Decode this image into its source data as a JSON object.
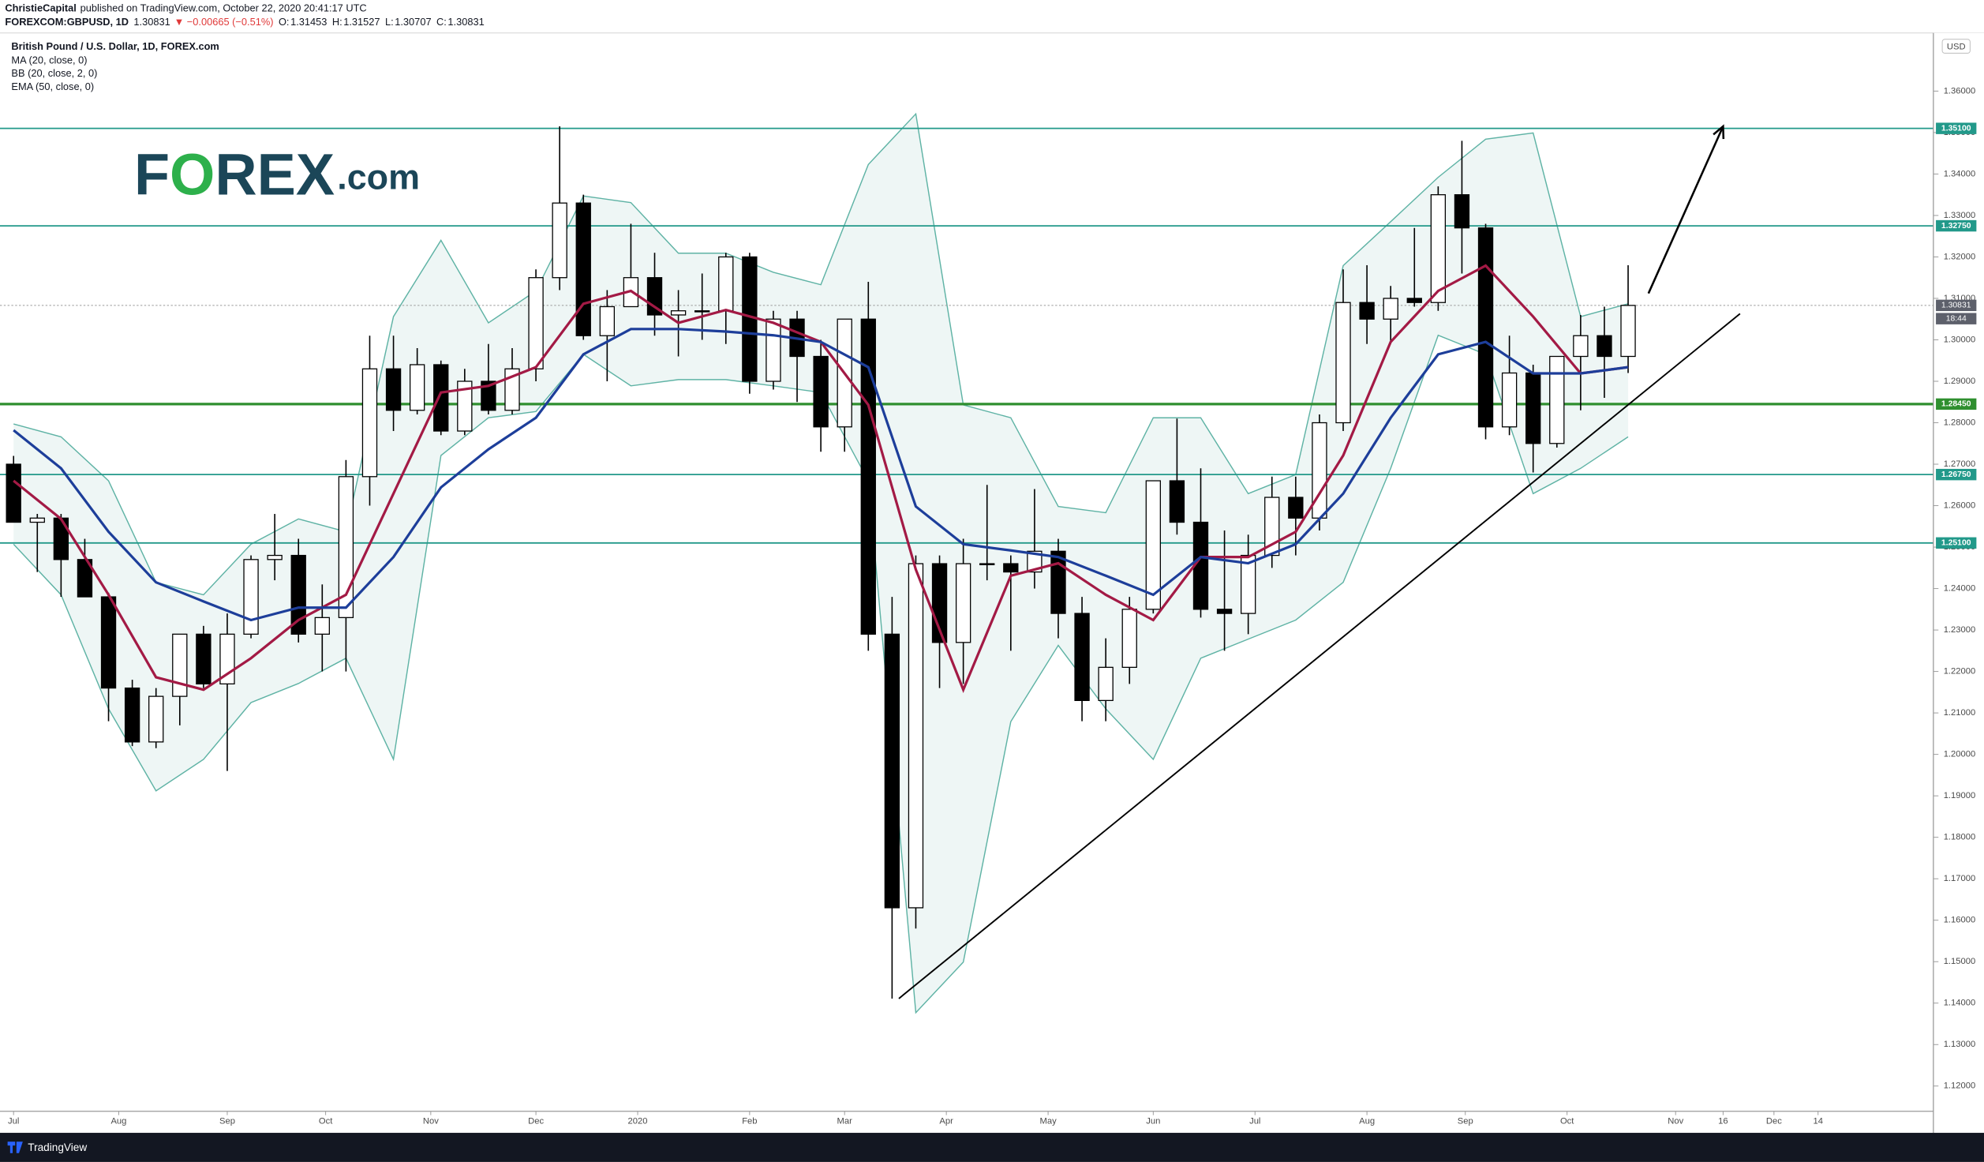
{
  "chart_data": {
    "type": "candlestick",
    "header": {
      "author": "ChristieCapital",
      "published": "published on TradingView.com, October 22, 2020 20:41:17 UTC",
      "symbol": "FOREXCOM:GBPUSD, 1D",
      "last": 1.30831,
      "change": "▼ −0.00665 (−0.51%)",
      "ohlc": [
        {
          "label": "O:",
          "value": 1.31453
        },
        {
          "label": "H:",
          "value": 1.31527
        },
        {
          "label": "L:",
          "value": 1.30707
        },
        {
          "label": "C:",
          "value": 1.30831
        }
      ]
    },
    "title": "British Pound / U.S. Dollar, 1D, FOREX.com",
    "logo": [
      "F",
      "O",
      "REX",
      ".com"
    ],
    "footer": "TradingView",
    "currency": "USD",
    "up_color": "#ffffff",
    "down_color": "#000000",
    "x": [
      "2019-07-01",
      "2019-07-08",
      "2019-07-15",
      "2019-07-22",
      "2019-07-29",
      "2019-08-05",
      "2019-08-12",
      "2019-08-19",
      "2019-08-26",
      "2019-09-02",
      "2019-09-09",
      "2019-09-16",
      "2019-09-23",
      "2019-09-30",
      "2019-10-07",
      "2019-10-14",
      "2019-10-21",
      "2019-10-28",
      "2019-11-04",
      "2019-11-11",
      "2019-11-18",
      "2019-11-25",
      "2019-12-02",
      "2019-12-09",
      "2019-12-16",
      "2019-12-23",
      "2019-12-30",
      "2020-01-06",
      "2020-01-13",
      "2020-01-20",
      "2020-01-27",
      "2020-02-03",
      "2020-02-10",
      "2020-02-17",
      "2020-02-24",
      "2020-03-02",
      "2020-03-09",
      "2020-03-16",
      "2020-03-23",
      "2020-03-30",
      "2020-04-06",
      "2020-04-13",
      "2020-04-20",
      "2020-04-27",
      "2020-05-04",
      "2020-05-11",
      "2020-05-18",
      "2020-05-25",
      "2020-06-01",
      "2020-06-08",
      "2020-06-15",
      "2020-06-22",
      "2020-06-29",
      "2020-07-06",
      "2020-07-13",
      "2020-07-20",
      "2020-07-27",
      "2020-08-03",
      "2020-08-10",
      "2020-08-17",
      "2020-08-24",
      "2020-08-31",
      "2020-09-07",
      "2020-09-14",
      "2020-09-21",
      "2020-09-28",
      "2020-10-05",
      "2020-10-12",
      "2020-10-19"
    ],
    "open": [
      1.27,
      1.256,
      1.257,
      1.247,
      1.238,
      1.216,
      1.203,
      1.214,
      1.229,
      1.217,
      1.229,
      1.247,
      1.248,
      1.229,
      1.233,
      1.267,
      1.293,
      1.283,
      1.294,
      1.278,
      1.29,
      1.283,
      1.293,
      1.315,
      1.333,
      1.301,
      1.308,
      1.315,
      1.306,
      1.307,
      1.307,
      1.32,
      1.29,
      1.305,
      1.296,
      1.279,
      1.305,
      1.229,
      1.163,
      1.246,
      1.227,
      1.246,
      1.246,
      1.244,
      1.249,
      1.234,
      1.213,
      1.221,
      1.235,
      1.266,
      1.256,
      1.235,
      1.234,
      1.248,
      1.262,
      1.257,
      1.28,
      1.309,
      1.305,
      1.31,
      1.309,
      1.335,
      1.327,
      1.279,
      1.292,
      1.275,
      1.296,
      1.301,
      1.296
    ],
    "high": [
      1.272,
      1.258,
      1.258,
      1.252,
      1.239,
      1.218,
      1.216,
      1.229,
      1.231,
      1.234,
      1.248,
      1.258,
      1.252,
      1.241,
      1.271,
      1.301,
      1.301,
      1.298,
      1.295,
      1.293,
      1.299,
      1.298,
      1.317,
      1.3515,
      1.335,
      1.312,
      1.328,
      1.321,
      1.312,
      1.316,
      1.321,
      1.321,
      1.307,
      1.307,
      1.3,
      1.305,
      1.314,
      1.238,
      1.248,
      1.248,
      1.252,
      1.265,
      1.248,
      1.264,
      1.252,
      1.238,
      1.228,
      1.238,
      1.266,
      1.281,
      1.269,
      1.254,
      1.253,
      1.267,
      1.267,
      1.282,
      1.317,
      1.318,
      1.313,
      1.327,
      1.337,
      1.348,
      1.328,
      1.301,
      1.294,
      1.295,
      1.306,
      1.308,
      1.318
    ],
    "low": [
      1.256,
      1.244,
      1.238,
      1.238,
      1.208,
      1.202,
      1.2015,
      1.207,
      1.216,
      1.196,
      1.228,
      1.242,
      1.227,
      1.22,
      1.22,
      1.26,
      1.278,
      1.282,
      1.277,
      1.277,
      1.282,
      1.282,
      1.29,
      1.312,
      1.3,
      1.29,
      1.308,
      1.301,
      1.296,
      1.3,
      1.299,
      1.287,
      1.288,
      1.285,
      1.273,
      1.273,
      1.225,
      1.1411,
      1.158,
      1.216,
      1.217,
      1.242,
      1.225,
      1.24,
      1.228,
      1.208,
      1.208,
      1.217,
      1.234,
      1.253,
      1.233,
      1.225,
      1.229,
      1.245,
      1.248,
      1.254,
      1.278,
      1.299,
      1.299,
      1.308,
      1.307,
      1.316,
      1.276,
      1.277,
      1.268,
      1.274,
      1.283,
      1.286,
      1.292
    ],
    "close": [
      1.256,
      1.257,
      1.247,
      1.238,
      1.216,
      1.203,
      1.214,
      1.229,
      1.217,
      1.229,
      1.247,
      1.248,
      1.229,
      1.233,
      1.267,
      1.293,
      1.283,
      1.294,
      1.278,
      1.29,
      1.283,
      1.293,
      1.315,
      1.333,
      1.301,
      1.308,
      1.315,
      1.306,
      1.307,
      1.307,
      1.32,
      1.29,
      1.305,
      1.296,
      1.279,
      1.305,
      1.229,
      1.163,
      1.246,
      1.227,
      1.246,
      1.246,
      1.244,
      1.249,
      1.234,
      1.213,
      1.221,
      1.235,
      1.266,
      1.256,
      1.235,
      1.234,
      1.248,
      1.262,
      1.257,
      1.28,
      1.309,
      1.305,
      1.31,
      1.309,
      1.335,
      1.327,
      1.279,
      1.292,
      1.275,
      1.296,
      1.301,
      1.296,
      1.3083
    ],
    "indicator_x": [
      "2019-07-01",
      "2019-07-15",
      "2019-07-29",
      "2019-08-12",
      "2019-08-26",
      "2019-09-09",
      "2019-09-23",
      "2019-10-07",
      "2019-10-21",
      "2019-11-04",
      "2019-11-18",
      "2019-12-02",
      "2019-12-16",
      "2019-12-30",
      "2020-01-13",
      "2020-01-27",
      "2020-02-10",
      "2020-02-24",
      "2020-03-09",
      "2020-03-23",
      "2020-04-06",
      "2020-04-20",
      "2020-05-04",
      "2020-05-18",
      "2020-06-01",
      "2020-06-15",
      "2020-06-29",
      "2020-07-13",
      "2020-07-27",
      "2020-08-10",
      "2020-08-24",
      "2020-09-07",
      "2020-09-21",
      "2020-10-05",
      "2020-10-19"
    ],
    "indicators": [
      {
        "name": "MA (20, close, 0)",
        "color": "#a31a45",
        "values": [
          1.266,
          1.2568,
          1.2385,
          1.2186,
          1.2156,
          1.2232,
          1.2324,
          1.2385,
          1.2629,
          1.2873,
          1.2889,
          1.2934,
          1.3087,
          1.3118,
          1.3041,
          1.3072,
          1.3041,
          1.2995,
          1.2843,
          1.2446,
          1.2156,
          1.2431,
          1.2461,
          1.2385,
          1.2324,
          1.2476,
          1.2476,
          1.2537,
          1.2721,
          1.2995,
          1.3118,
          1.3179,
          1.3056,
          1.2919,
          1.2934
        ]
      },
      {
        "name": "BB (20, close, 2, 0)",
        "color": "#5fb3a5",
        "fill": "#eef6f5",
        "upper": [
          1.2797,
          1.2766,
          1.266,
          1.2415,
          1.2385,
          1.2507,
          1.2568,
          1.2537,
          1.3056,
          1.324,
          1.3041,
          1.3118,
          1.3347,
          1.3331,
          1.3209,
          1.3209,
          1.3163,
          1.3133,
          1.3423,
          1.3545,
          1.2843,
          1.2812,
          1.2598,
          1.2583,
          1.2812,
          1.2812,
          1.2629,
          1.2675,
          1.3179,
          1.3285,
          1.3392,
          1.3484,
          1.3499,
          1.3056,
          1.3087
        ],
        "lower": [
          1.2507,
          1.2385,
          1.211,
          1.1912,
          1.1988,
          1.2125,
          1.2171,
          1.2232,
          1.1988,
          1.2721,
          1.2812,
          1.2827,
          1.2965,
          1.2889,
          1.2904,
          1.2904,
          1.2889,
          1.2873,
          1.266,
          1.1377,
          1.1499,
          1.2079,
          1.2263,
          1.211,
          1.1988,
          1.2232,
          1.2278,
          1.2324,
          1.2415,
          1.269,
          1.3011,
          1.2965,
          1.2629,
          1.269,
          1.2766
        ]
      },
      {
        "name": "EMA (50, close, 0)",
        "color": "#1d3e9a",
        "values": [
          1.2782,
          1.269,
          1.2537,
          1.2415,
          1.2369,
          1.2324,
          1.2354,
          1.2354,
          1.2476,
          1.2644,
          1.2736,
          1.2812,
          1.2965,
          1.3026,
          1.3026,
          1.302,
          1.3011,
          1.2995,
          1.2934,
          1.2598,
          1.2507,
          1.2492,
          1.2476,
          1.2431,
          1.2385,
          1.2476,
          1.2461,
          1.2507,
          1.2629,
          1.2812,
          1.2965,
          1.2995,
          1.2919,
          1.2919,
          1.2934
        ]
      }
    ],
    "levels": [
      {
        "value": 1.351,
        "label": "1.35100",
        "color": "#22998a"
      },
      {
        "value": 1.3275,
        "label": "1.32750",
        "color": "#22998a"
      },
      {
        "value": 1.2845,
        "label": "1.28450",
        "color": "#2f8f2f"
      },
      {
        "value": 1.2675,
        "label": "1.26750",
        "color": "#22998a"
      },
      {
        "value": 1.251,
        "label": "1.25100",
        "color": "#22998a"
      }
    ],
    "current": {
      "value": 1.30831,
      "label": "1.30831",
      "countdown": "18:44"
    },
    "trendline": {
      "x": [
        "2020-03-18",
        "2020-11-21"
      ],
      "y": [
        1.1411,
        1.3063
      ]
    },
    "arrow": {
      "x": [
        "2020-10-25",
        "2020-11-16"
      ],
      "y": [
        1.3112,
        1.3515
      ]
    },
    "xlim": [
      "2019-06-27",
      "2021-01-17"
    ],
    "ylim": [
      1.1139,
      1.3728
    ],
    "xticks": [
      {
        "value": "2019-07-01",
        "label": "Jul"
      },
      {
        "value": "2019-08-01",
        "label": "Aug"
      },
      {
        "value": "2019-09-02",
        "label": "Sep"
      },
      {
        "value": "2019-10-01",
        "label": "Oct"
      },
      {
        "value": "2019-11-01",
        "label": "Nov"
      },
      {
        "value": "2019-12-02",
        "label": "Dec"
      },
      {
        "value": "2020-01-01",
        "label": "2020"
      },
      {
        "value": "2020-02-03",
        "label": "Feb"
      },
      {
        "value": "2020-03-02",
        "label": "Mar"
      },
      {
        "value": "2020-04-01",
        "label": "Apr"
      },
      {
        "value": "2020-05-01",
        "label": "May"
      },
      {
        "value": "2020-06-01",
        "label": "Jun"
      },
      {
        "value": "2020-07-01",
        "label": "Jul"
      },
      {
        "value": "2020-08-03",
        "label": "Aug"
      },
      {
        "value": "2020-09-01",
        "label": "Sep"
      },
      {
        "value": "2020-10-01",
        "label": "Oct"
      },
      {
        "value": "2020-11-02",
        "label": "Nov"
      },
      {
        "value": "2020-11-16",
        "label": "16"
      },
      {
        "value": "2020-12-01",
        "label": "Dec"
      },
      {
        "value": "2020-12-14",
        "label": "14"
      }
    ],
    "yticks": [
      {
        "value": 1.12,
        "label": "1.12000"
      },
      {
        "value": 1.13,
        "label": "1.13000"
      },
      {
        "value": 1.14,
        "label": "1.14000"
      },
      {
        "value": 1.15,
        "label": "1.15000"
      },
      {
        "value": 1.16,
        "label": "1.16000"
      },
      {
        "value": 1.17,
        "label": "1.17000"
      },
      {
        "value": 1.18,
        "label": "1.18000"
      },
      {
        "value": 1.19,
        "label": "1.19000"
      },
      {
        "value": 1.2,
        "label": "1.20000"
      },
      {
        "value": 1.21,
        "label": "1.21000"
      },
      {
        "value": 1.22,
        "label": "1.22000"
      },
      {
        "value": 1.23,
        "label": "1.23000"
      },
      {
        "value": 1.24,
        "label": "1.24000"
      },
      {
        "value": 1.25,
        "label": "1.25000"
      },
      {
        "value": 1.26,
        "label": "1.26000"
      },
      {
        "value": 1.27,
        "label": "1.27000"
      },
      {
        "value": 1.28,
        "label": "1.28000"
      },
      {
        "value": 1.29,
        "label": "1.29000"
      },
      {
        "value": 1.3,
        "label": "1.30000"
      },
      {
        "value": 1.31,
        "label": "1.31000"
      },
      {
        "value": 1.32,
        "label": "1.32000"
      },
      {
        "value": 1.33,
        "label": "1.33000"
      },
      {
        "value": 1.34,
        "label": "1.34000"
      },
      {
        "value": 1.35,
        "label": "1.35000"
      },
      {
        "value": 1.36,
        "label": "1.36000"
      }
    ]
  }
}
